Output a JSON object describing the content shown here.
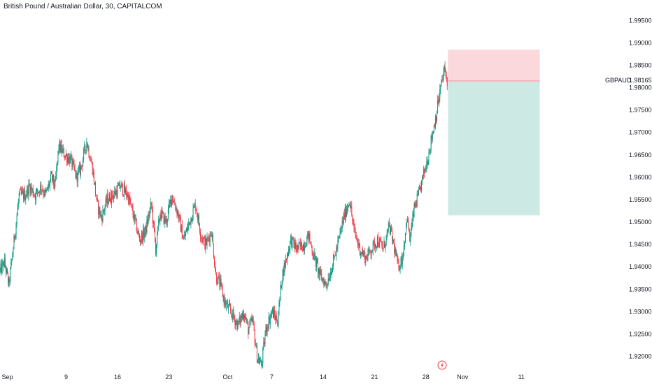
{
  "header": {
    "title": "British Pound / Australian Dollar, 30, CAPITALCOM"
  },
  "chart_data": {
    "type": "candlestick",
    "symbol": "GBPAUD",
    "last_price": "1.98165",
    "colors": {
      "up": "#089981",
      "down": "#f23645",
      "target_zone": "#cce9e4",
      "stop_zone": "#fbd8db",
      "zone_line": "#f7a9b0"
    },
    "ylim": [
      1.9165,
      1.998
    ],
    "y_ticks": [
      "1.99500",
      "1.99000",
      "1.98500",
      "1.98000",
      "1.97500",
      "1.97000",
      "1.96500",
      "1.96000",
      "1.95500",
      "1.95000",
      "1.94500",
      "1.94000",
      "1.93500",
      "1.93000",
      "1.92500",
      "1.92000"
    ],
    "x_ticks": [
      {
        "label": "Sep",
        "day": 1
      },
      {
        "label": "9",
        "day": 9
      },
      {
        "label": "16",
        "day": 16
      },
      {
        "label": "23",
        "day": 23
      },
      {
        "label": "Oct",
        "day": 31
      },
      {
        "label": "7",
        "day": 37
      },
      {
        "label": "14",
        "day": 44
      },
      {
        "label": "21",
        "day": 51
      },
      {
        "label": "28",
        "day": 58
      },
      {
        "label": "Nov",
        "day": 63
      },
      {
        "label": "11",
        "day": 71
      }
    ],
    "price_path": [
      [
        0,
        1.939
      ],
      [
        0.6,
        1.941
      ],
      [
        1.2,
        1.936
      ],
      [
        2.0,
        1.947
      ],
      [
        2.6,
        1.956
      ],
      [
        3.4,
        1.956
      ],
      [
        4.0,
        1.958
      ],
      [
        4.8,
        1.956
      ],
      [
        5.6,
        1.958
      ],
      [
        6.2,
        1.956
      ],
      [
        7.0,
        1.96
      ],
      [
        7.5,
        1.958
      ],
      [
        8.0,
        1.967
      ],
      [
        8.8,
        1.965
      ],
      [
        9.6,
        1.964
      ],
      [
        10.4,
        1.96
      ],
      [
        11.0,
        1.962
      ],
      [
        11.8,
        1.968
      ],
      [
        12.6,
        1.962
      ],
      [
        13.2,
        1.954
      ],
      [
        13.8,
        1.951
      ],
      [
        14.6,
        1.955
      ],
      [
        15.4,
        1.956
      ],
      [
        16.4,
        1.958
      ],
      [
        17.4,
        1.956
      ],
      [
        18.4,
        1.95
      ],
      [
        19.0,
        1.946
      ],
      [
        19.8,
        1.948
      ],
      [
        20.6,
        1.954
      ],
      [
        21.2,
        1.944
      ],
      [
        21.8,
        1.952
      ],
      [
        22.6,
        1.95
      ],
      [
        23.4,
        1.956
      ],
      [
        24.2,
        1.952
      ],
      [
        25.0,
        1.946
      ],
      [
        25.8,
        1.95
      ],
      [
        26.6,
        1.954
      ],
      [
        27.4,
        1.947
      ],
      [
        28.0,
        1.945
      ],
      [
        28.8,
        1.948
      ],
      [
        29.4,
        1.938
      ],
      [
        30.0,
        1.936
      ],
      [
        30.6,
        1.932
      ],
      [
        31.4,
        1.93
      ],
      [
        32.4,
        1.927
      ],
      [
        33.2,
        1.93
      ],
      [
        33.8,
        1.926
      ],
      [
        34.4,
        1.928
      ],
      [
        35.0,
        1.92
      ],
      [
        35.6,
        1.918
      ],
      [
        36.2,
        1.926
      ],
      [
        37.0,
        1.93
      ],
      [
        37.8,
        1.928
      ],
      [
        38.4,
        1.938
      ],
      [
        39.0,
        1.942
      ],
      [
        39.6,
        1.946
      ],
      [
        40.4,
        1.944
      ],
      [
        41.4,
        1.945
      ],
      [
        42.0,
        1.947
      ],
      [
        42.8,
        1.942
      ],
      [
        43.6,
        1.938
      ],
      [
        44.4,
        1.936
      ],
      [
        45.2,
        1.94
      ],
      [
        46.0,
        1.945
      ],
      [
        46.8,
        1.951
      ],
      [
        47.6,
        1.955
      ],
      [
        48.2,
        1.948
      ],
      [
        49.0,
        1.944
      ],
      [
        49.8,
        1.942
      ],
      [
        50.6,
        1.944
      ],
      [
        51.4,
        1.946
      ],
      [
        52.2,
        1.944
      ],
      [
        53.0,
        1.949
      ],
      [
        53.6,
        1.945
      ],
      [
        54.2,
        1.94
      ],
      [
        54.8,
        1.942
      ],
      [
        55.4,
        1.951
      ],
      [
        55.8,
        1.946
      ],
      [
        56.4,
        1.953
      ],
      [
        57.0,
        1.956
      ],
      [
        57.6,
        1.96
      ],
      [
        58.2,
        1.964
      ],
      [
        58.8,
        1.969
      ],
      [
        59.4,
        1.974
      ],
      [
        60.0,
        1.98
      ],
      [
        60.5,
        1.984
      ],
      [
        60.9,
        1.9816
      ]
    ],
    "long_position": {
      "entry": 1.9815,
      "target": 1.9515,
      "stop": 1.9885,
      "start_day": 61.0,
      "end_day": 73.5
    },
    "icons": [
      "lightning-icon"
    ]
  }
}
